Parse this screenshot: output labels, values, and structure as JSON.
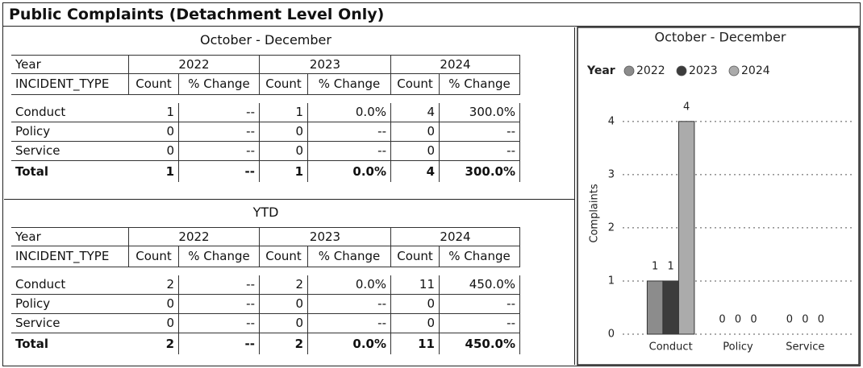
{
  "title": "Public Complaints (Detachment Level Only)",
  "tables": [
    {
      "title": "October - December",
      "year_label": "Year",
      "years": [
        "2022",
        "2023",
        "2024"
      ],
      "type_label": "INCIDENT_TYPE",
      "columns": [
        "Count",
        "% Change",
        "Count",
        "% Change",
        "Count",
        "% Change"
      ],
      "rows": [
        {
          "label": "Conduct",
          "cells": [
            "1",
            "--",
            "1",
            "0.0%",
            "4",
            "300.0%"
          ]
        },
        {
          "label": "Policy",
          "cells": [
            "0",
            "--",
            "0",
            "--",
            "0",
            "--"
          ]
        },
        {
          "label": "Service",
          "cells": [
            "0",
            "--",
            "0",
            "--",
            "0",
            "--"
          ]
        },
        {
          "label": "Total",
          "cells": [
            "1",
            "--",
            "1",
            "0.0%",
            "4",
            "300.0%"
          ]
        }
      ]
    },
    {
      "title": "YTD",
      "year_label": "Year",
      "years": [
        "2022",
        "2023",
        "2024"
      ],
      "type_label": "INCIDENT_TYPE",
      "columns": [
        "Count",
        "% Change",
        "Count",
        "% Change",
        "Count",
        "% Change"
      ],
      "rows": [
        {
          "label": "Conduct",
          "cells": [
            "2",
            "--",
            "2",
            "0.0%",
            "11",
            "450.0%"
          ]
        },
        {
          "label": "Policy",
          "cells": [
            "0",
            "--",
            "0",
            "--",
            "0",
            "--"
          ]
        },
        {
          "label": "Service",
          "cells": [
            "0",
            "--",
            "0",
            "--",
            "0",
            "--"
          ]
        },
        {
          "label": "Total",
          "cells": [
            "2",
            "--",
            "2",
            "0.0%",
            "11",
            "450.0%"
          ]
        }
      ]
    }
  ],
  "chart_data": {
    "type": "bar",
    "title": "October - December",
    "legend_title": "Year",
    "y_label": "Complaints",
    "categories": [
      "Conduct",
      "Policy",
      "Service"
    ],
    "series": [
      {
        "name": "2022",
        "color": "#8c8c8c",
        "values": [
          1,
          0,
          0
        ]
      },
      {
        "name": "2023",
        "color": "#3c3c3c",
        "values": [
          1,
          0,
          0
        ]
      },
      {
        "name": "2024",
        "color": "#ababab",
        "values": [
          4,
          0,
          0
        ]
      }
    ],
    "ylim": [
      0,
      4.3
    ],
    "yticks": [
      0,
      1,
      2,
      3,
      4
    ],
    "grid": true
  }
}
